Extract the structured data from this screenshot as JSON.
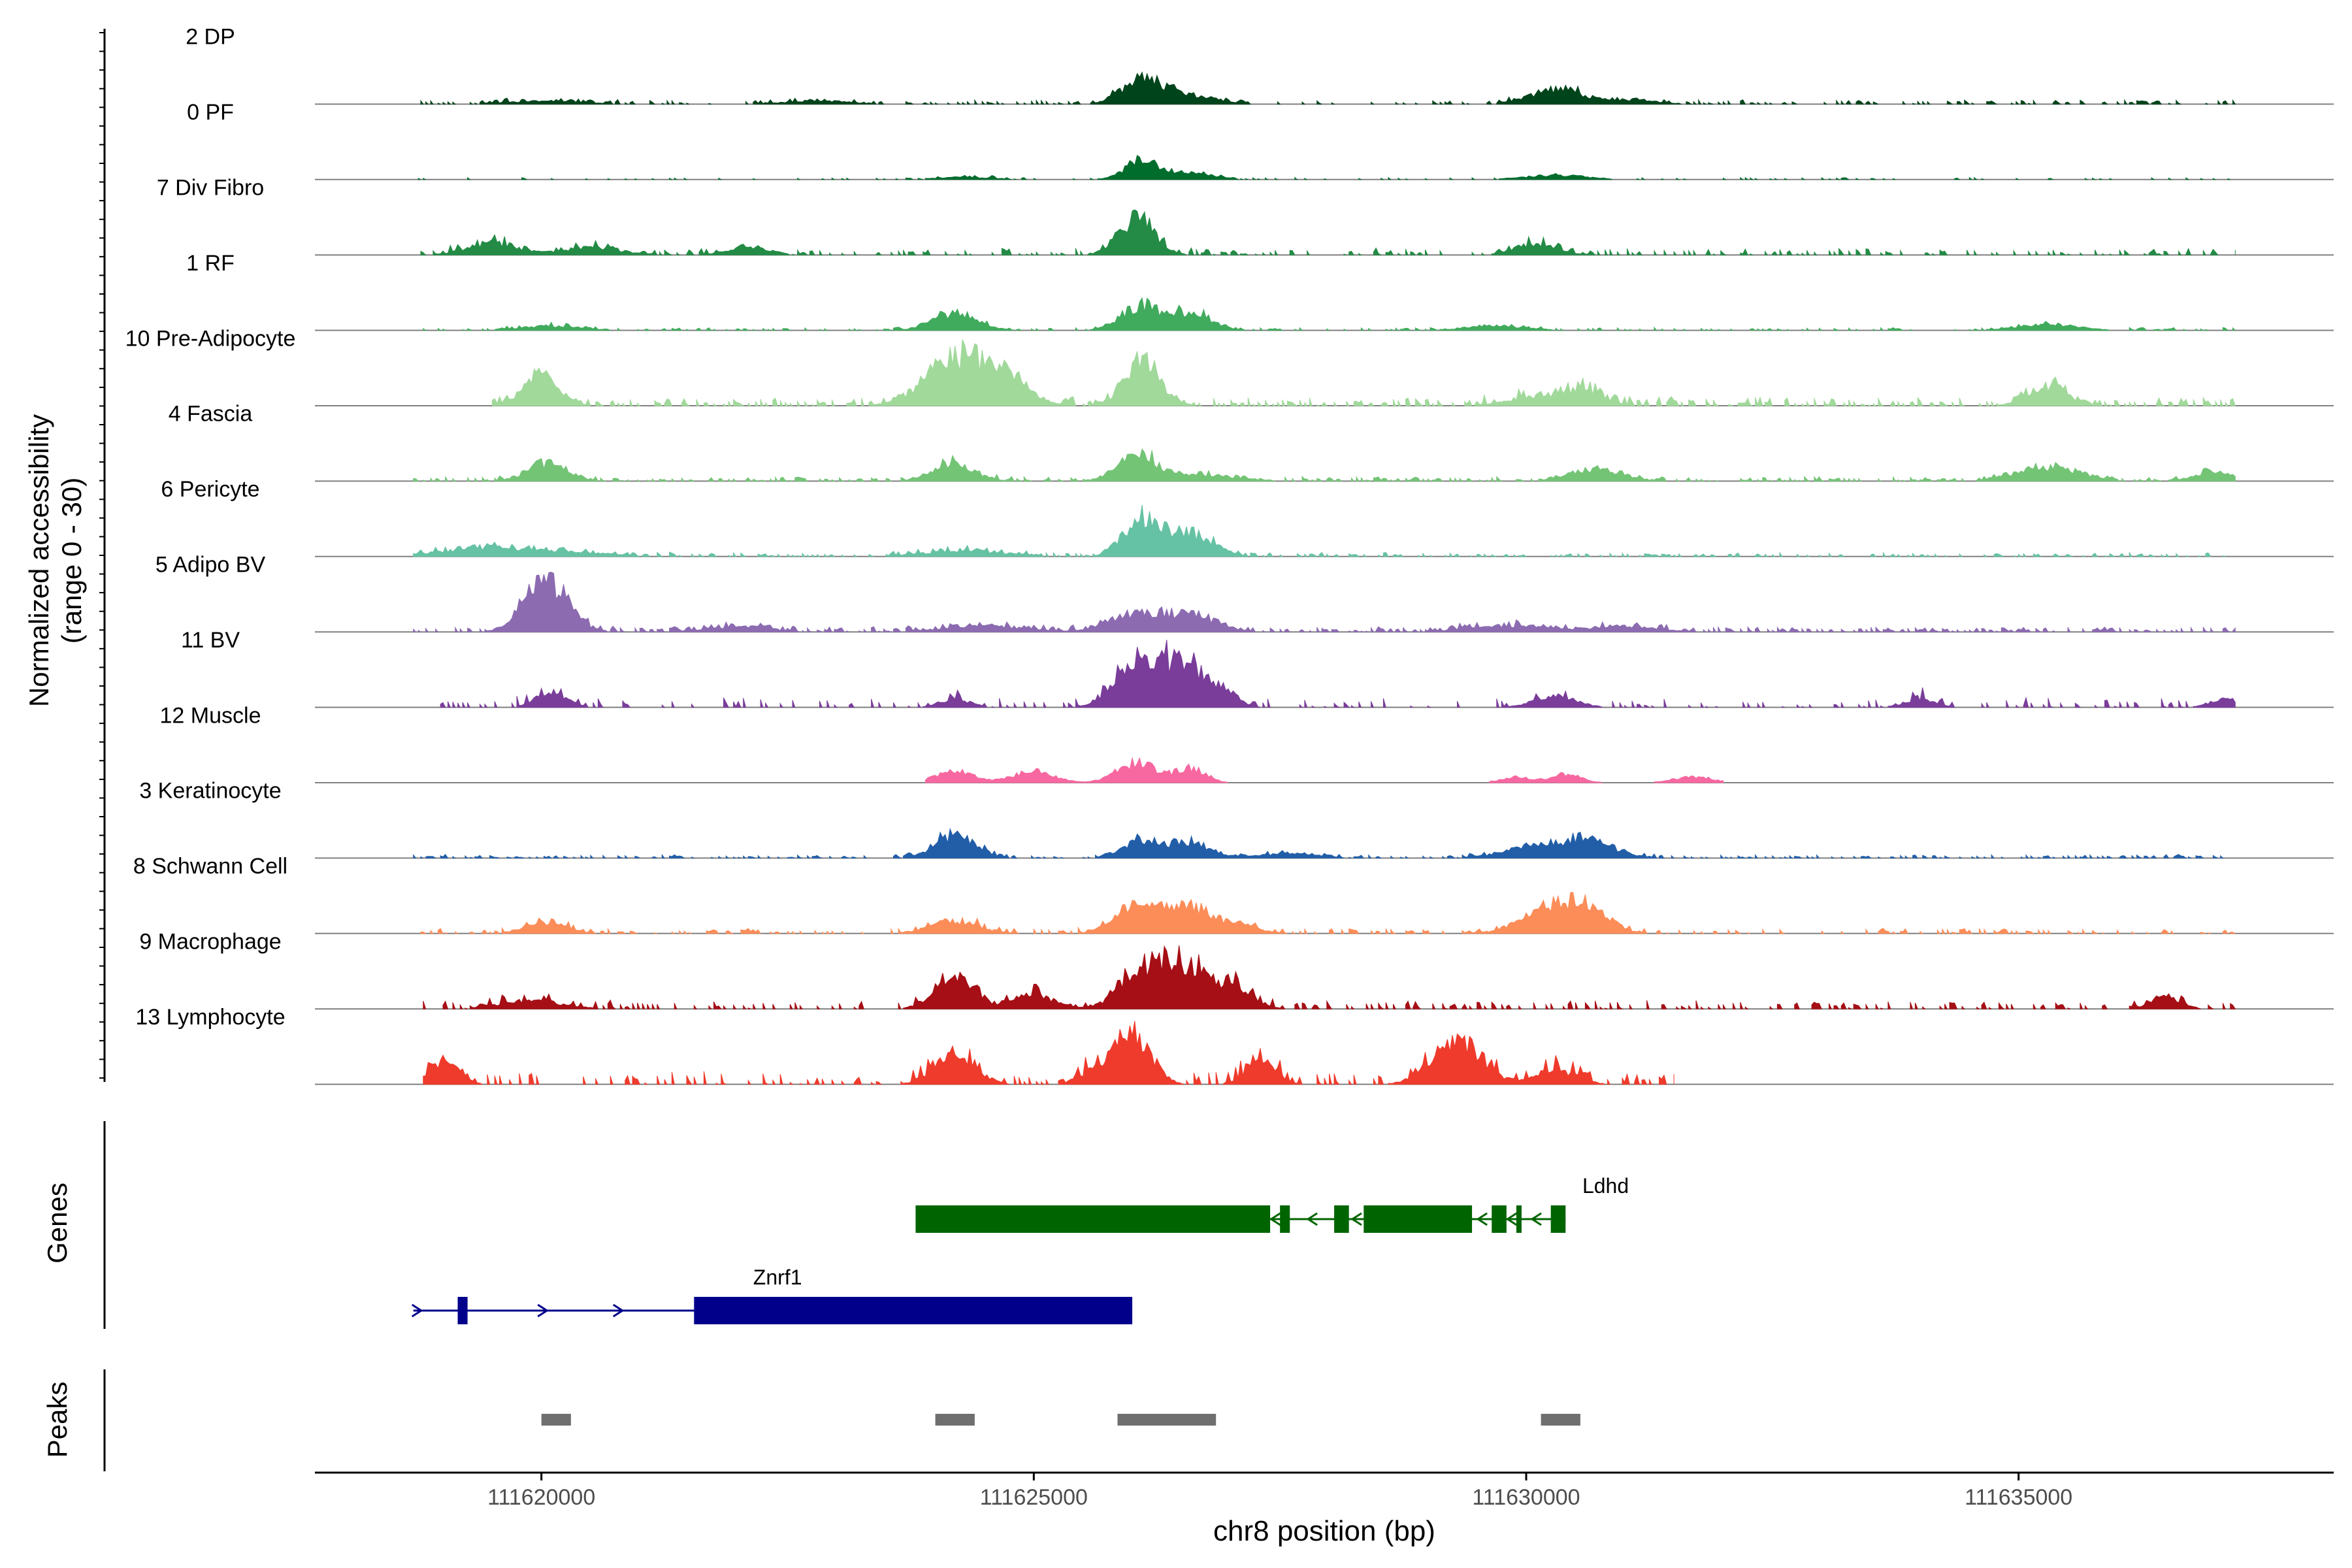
{
  "chart_data": {
    "type": "coverage",
    "chromosome": "chr8",
    "xlabel": "chr8 position (bp)",
    "ylabel": "Normalized accessibility",
    "ylabel_range": "(range 0 - 30)",
    "y_range": [
      0,
      30
    ],
    "xlim": [
      111617700,
      111638200
    ],
    "x_ticks": [
      111620000,
      111625000,
      111630000,
      111635000
    ],
    "x_tick_labels": [
      "111620000",
      "111625000",
      "111630000",
      "111635000"
    ],
    "tracks": [
      {
        "name": "2 DP",
        "color": "#00441b",
        "peaks": [
          [
            111626100,
            9,
            200
          ],
          [
            111626600,
            3,
            250
          ],
          [
            111630300,
            5,
            250
          ],
          [
            111631000,
            1.5,
            300
          ],
          [
            111620000,
            1,
            400
          ],
          [
            111622800,
            1.2,
            300
          ]
        ],
        "noise": 1.2,
        "start": 111618700,
        "end": 111637200,
        "density": 0.45
      },
      {
        "name": "0 PF",
        "color": "#006d2c",
        "peaks": [
          [
            111626100,
            7,
            160
          ],
          [
            111626600,
            2,
            250
          ],
          [
            111630300,
            1.5,
            300
          ],
          [
            111624300,
            0.8,
            300
          ]
        ],
        "noise": 0.6,
        "start": 111618700,
        "end": 111637200,
        "density": 0.3
      },
      {
        "name": "7 Div Fibro",
        "color": "#238b45",
        "peaks": [
          [
            111626050,
            13,
            180
          ],
          [
            111619500,
            4,
            250
          ],
          [
            111630100,
            4,
            200
          ],
          [
            111622100,
            3,
            200
          ],
          [
            111620500,
            2.5,
            300
          ]
        ],
        "noise": 2,
        "start": 111618700,
        "end": 111637200,
        "density": 0.35
      },
      {
        "name": "1 RF",
        "color": "#41ab5d",
        "peaks": [
          [
            111624200,
            6,
            220
          ],
          [
            111626100,
            8,
            200
          ],
          [
            111626600,
            6,
            200
          ],
          [
            111635300,
            2,
            300
          ],
          [
            111620100,
            1.5,
            300
          ],
          [
            111629700,
            1.5,
            300
          ]
        ],
        "noise": 0.8,
        "start": 111618700,
        "end": 111637200,
        "density": 0.4
      },
      {
        "name": "10 Pre-Adipocyte",
        "color": "#a1d99b",
        "peaks": [
          [
            111620000,
            11,
            180
          ],
          [
            111624200,
            16,
            300
          ],
          [
            111624700,
            8,
            250
          ],
          [
            111626100,
            14,
            180
          ],
          [
            111630600,
            5,
            200
          ],
          [
            111635300,
            6,
            200
          ],
          [
            111630100,
            3,
            300
          ]
        ],
        "noise": 2.5,
        "start": 111619500,
        "end": 111637200,
        "density": 0.5
      },
      {
        "name": "4 Fascia",
        "color": "#74c476",
        "peaks": [
          [
            111620050,
            6,
            200
          ],
          [
            111624200,
            6,
            200
          ],
          [
            111626050,
            9,
            200
          ],
          [
            111630700,
            4,
            250
          ],
          [
            111635300,
            5,
            300
          ],
          [
            111637000,
            3,
            200
          ],
          [
            111626700,
            2,
            350
          ]
        ],
        "noise": 1.3,
        "start": 111618700,
        "end": 111637200,
        "density": 0.55
      },
      {
        "name": "6 Pericyte",
        "color": "#66c2a4",
        "peaks": [
          [
            111626100,
            13,
            180
          ],
          [
            111626600,
            8,
            220
          ],
          [
            111620000,
            2,
            500
          ],
          [
            111624300,
            2,
            400
          ],
          [
            111619300,
            2,
            400
          ]
        ],
        "noise": 1.2,
        "start": 111618700,
        "end": 111637200,
        "density": 0.5
      },
      {
        "name": "5 Adipo BV",
        "color": "#8c6bb1",
        "peaks": [
          [
            111620050,
            17,
            220
          ],
          [
            111626000,
            6,
            250
          ],
          [
            111626600,
            6,
            250
          ],
          [
            111624500,
            2,
            400
          ],
          [
            111629800,
            2,
            400
          ],
          [
            111631000,
            2,
            300
          ],
          [
            111622000,
            2,
            300
          ]
        ],
        "noise": 1.5,
        "start": 111618700,
        "end": 111637200,
        "density": 0.6
      },
      {
        "name": "11 BV",
        "color": "#7a3d9a",
        "peaks": [
          [
            111626000,
            15,
            200
          ],
          [
            111626500,
            17,
            200
          ],
          [
            111626900,
            6,
            150
          ],
          [
            111620100,
            6,
            150
          ],
          [
            111630300,
            4,
            200
          ],
          [
            111624200,
            3,
            150
          ],
          [
            111634000,
            3,
            150
          ],
          [
            111637100,
            3,
            150
          ]
        ],
        "noise": 3,
        "start": 111618900,
        "end": 111637200,
        "density": 0.25
      },
      {
        "name": "12 Muscle",
        "color": "#f768a1",
        "peaks": [
          [
            111624200,
            4,
            200
          ],
          [
            111625000,
            4,
            200
          ],
          [
            111626050,
            7,
            200
          ],
          [
            111626600,
            5,
            150
          ],
          [
            111630400,
            3,
            150
          ],
          [
            111629900,
            2,
            150
          ],
          [
            111631700,
            2,
            200
          ]
        ],
        "noise": 0,
        "start": 111623900,
        "end": 111632000,
        "density": 0.2
      },
      {
        "name": "3 Keratinocyte",
        "color": "#225ea8",
        "peaks": [
          [
            111624200,
            8,
            200
          ],
          [
            111626100,
            6,
            200
          ],
          [
            111626600,
            5,
            200
          ],
          [
            111630300,
            5,
            400
          ],
          [
            111630700,
            3,
            200
          ],
          [
            111627600,
            1.5,
            300
          ]
        ],
        "noise": 1,
        "start": 111618700,
        "end": 111637200,
        "density": 0.5
      },
      {
        "name": "8 Schwann Cell",
        "color": "#fc8d59",
        "peaks": [
          [
            111626000,
            8,
            200
          ],
          [
            111626500,
            9,
            250
          ],
          [
            111630300,
            10,
            300
          ],
          [
            111630700,
            4,
            200
          ],
          [
            111624200,
            4,
            250
          ],
          [
            111620050,
            4,
            200
          ],
          [
            111627000,
            3,
            250
          ]
        ],
        "noise": 1.5,
        "start": 111618700,
        "end": 111637200,
        "density": 0.4
      },
      {
        "name": "9 Macrophage",
        "color": "#a50f15",
        "peaks": [
          [
            111624200,
            11,
            200
          ],
          [
            111626050,
            12,
            200
          ],
          [
            111626500,
            15,
            220
          ],
          [
            111627000,
            8,
            200
          ],
          [
            111625000,
            5,
            200
          ],
          [
            111636500,
            4,
            150
          ],
          [
            111619900,
            3,
            300
          ]
        ],
        "noise": 2.5,
        "start": 111618700,
        "end": 111637200,
        "density": 0.35
      },
      {
        "name": "13 Lymphocyte",
        "color": "#ef3b2c",
        "peaks": [
          [
            111626000,
            18,
            180
          ],
          [
            111624200,
            11,
            200
          ],
          [
            111629300,
            15,
            250
          ],
          [
            111619000,
            8,
            150
          ],
          [
            111627300,
            8,
            150
          ],
          [
            111630300,
            5,
            200
          ],
          [
            111625600,
            4,
            150
          ]
        ],
        "noise": 4,
        "start": 111618800,
        "end": 111631500,
        "density": 0.3
      }
    ],
    "genes_label": "Genes",
    "genes": [
      {
        "name": "Ldhd",
        "strand": "-",
        "color": "#006400",
        "row": 0,
        "start": 111623800,
        "end": 111630400,
        "exons": [
          [
            111623800,
            111627400
          ],
          [
            111627500,
            111627600
          ],
          [
            111628050,
            111628200
          ],
          [
            111628350,
            111629450
          ],
          [
            111629650,
            111629800
          ],
          [
            111629900,
            111629950
          ],
          [
            111630250,
            111630400
          ]
        ]
      },
      {
        "name": "Znrf1",
        "strand": "+",
        "color": "#00008b",
        "row": 1,
        "start": 111618700,
        "end": 111626000,
        "exons": [
          [
            111619150,
            111619250
          ],
          [
            111621550,
            111626000
          ]
        ]
      }
    ],
    "peaks_label": "Peaks",
    "peak_regions": [
      [
        111620000,
        111620300
      ],
      [
        111624000,
        111624400
      ],
      [
        111625850,
        111626850
      ],
      [
        111630150,
        111630550
      ]
    ],
    "peak_color": "#6f6f6f"
  }
}
